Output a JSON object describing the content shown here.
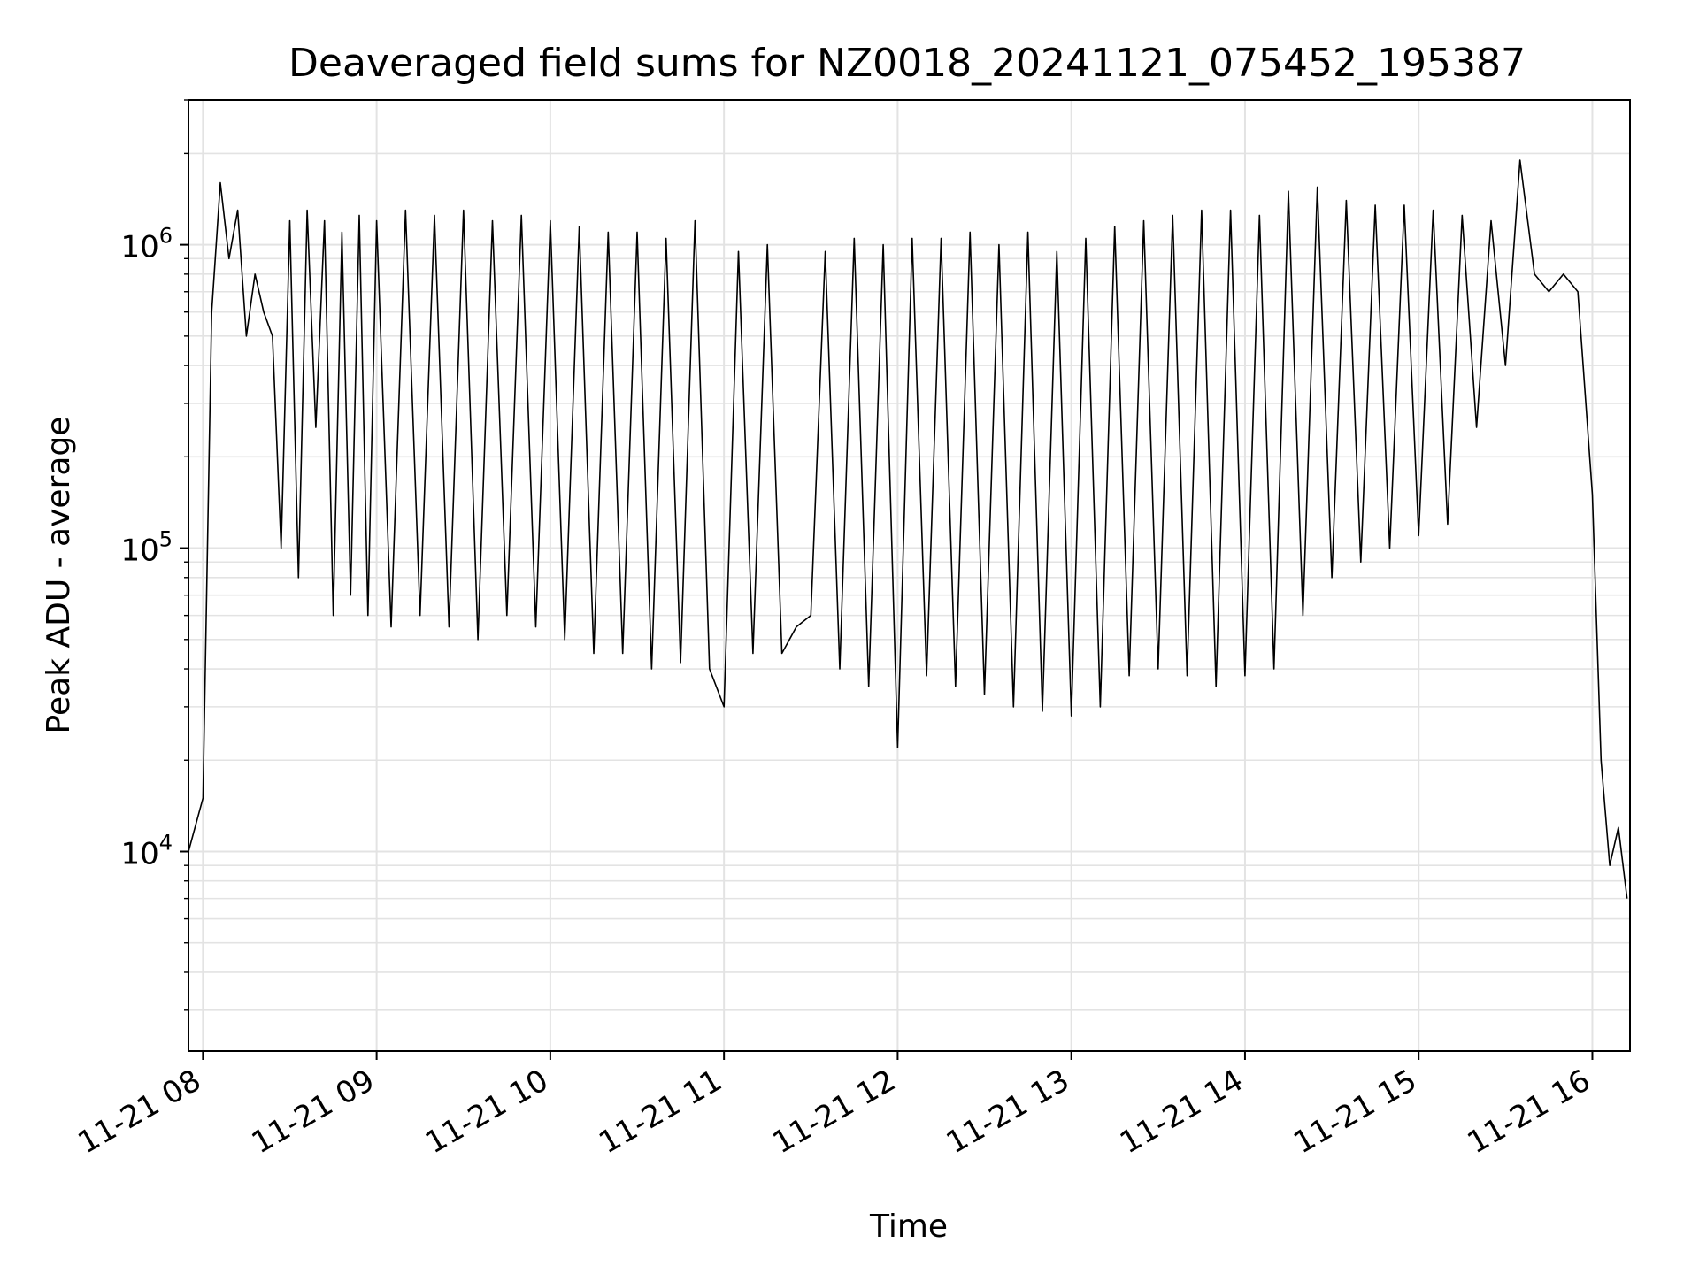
{
  "chart_data": {
    "type": "line",
    "title": "Deaveraged field sums for NZ0018_20241121_075452_195387",
    "xlabel": "Time",
    "ylabel": "Peak ADU - average",
    "y_scale": "log",
    "ylim": [
      2200,
      3000000
    ],
    "xlim": [
      "2024-11-21 07:55",
      "2024-11-21 16:13"
    ],
    "x_ticks": [
      "11-21 08",
      "11-21 09",
      "11-21 10",
      "11-21 11",
      "11-21 12",
      "11-21 13",
      "11-21 14",
      "11-21 15",
      "11-21 16"
    ],
    "y_ticks": [
      {
        "value": 10000,
        "base": "10",
        "exp": "4"
      },
      {
        "value": 100000,
        "base": "10",
        "exp": "5"
      },
      {
        "value": 1000000,
        "base": "10",
        "exp": "6"
      }
    ],
    "grid": true,
    "line_color": "#000000",
    "series": [
      {
        "values_note_removed": true,
        "x": [
          "07:55",
          "08:00",
          "08:03",
          "08:06",
          "08:09",
          "08:12",
          "08:15",
          "08:18",
          "08:21",
          "08:24",
          "08:27",
          "08:30",
          "08:33",
          "08:36",
          "08:39",
          "08:42",
          "08:45",
          "08:48",
          "08:51",
          "08:54",
          "08:57",
          "09:00",
          "09:05",
          "09:10",
          "09:15",
          "09:20",
          "09:25",
          "09:30",
          "09:35",
          "09:40",
          "09:45",
          "09:50",
          "09:55",
          "10:00",
          "10:05",
          "10:10",
          "10:15",
          "10:20",
          "10:25",
          "10:30",
          "10:35",
          "10:40",
          "10:45",
          "10:50",
          "10:55",
          "11:00",
          "11:05",
          "11:10",
          "11:15",
          "11:20",
          "11:25",
          "11:30",
          "11:35",
          "11:40",
          "11:45",
          "11:50",
          "11:55",
          "12:00",
          "12:05",
          "12:10",
          "12:15",
          "12:20",
          "12:25",
          "12:30",
          "12:35",
          "12:40",
          "12:45",
          "12:50",
          "12:55",
          "13:00",
          "13:05",
          "13:10",
          "13:15",
          "13:20",
          "13:25",
          "13:30",
          "13:35",
          "13:40",
          "13:45",
          "13:50",
          "13:55",
          "14:00",
          "14:05",
          "14:10",
          "14:15",
          "14:20",
          "14:25",
          "14:30",
          "14:35",
          "14:40",
          "14:45",
          "14:50",
          "14:55",
          "15:00",
          "15:05",
          "15:10",
          "15:15",
          "15:20",
          "15:25",
          "15:30",
          "15:35",
          "15:40",
          "15:45",
          "15:50",
          "15:55",
          "16:00",
          "16:03",
          "16:06",
          "16:09",
          "16:12"
        ],
        "y": [
          10000,
          15000,
          600000,
          1600000,
          900000,
          1300000,
          500000,
          800000,
          600000,
          500000,
          100000,
          1200000,
          80000,
          1300000,
          250000,
          1200000,
          60000,
          1100000,
          70000,
          1250000,
          60000,
          1200000,
          55000,
          1300000,
          60000,
          1250000,
          55000,
          1300000,
          50000,
          1200000,
          60000,
          1250000,
          55000,
          1200000,
          50000,
          1150000,
          45000,
          1100000,
          45000,
          1100000,
          40000,
          1050000,
          42000,
          1200000,
          40000,
          30000,
          950000,
          45000,
          1000000,
          45000,
          55000,
          60000,
          950000,
          40000,
          1050000,
          35000,
          1000000,
          22000,
          1050000,
          38000,
          1050000,
          35000,
          1100000,
          33000,
          1000000,
          30000,
          1100000,
          29000,
          950000,
          28000,
          1050000,
          30000,
          1150000,
          38000,
          1200000,
          40000,
          1250000,
          38000,
          1300000,
          35000,
          1300000,
          38000,
          1250000,
          40000,
          1500000,
          60000,
          1550000,
          80000,
          1400000,
          90000,
          1350000,
          100000,
          1350000,
          110000,
          1300000,
          120000,
          1250000,
          250000,
          1200000,
          400000,
          1900000,
          800000,
          700000,
          800000,
          700000,
          150000,
          20000,
          9000,
          12000,
          7000
        ]
      }
    ]
  }
}
